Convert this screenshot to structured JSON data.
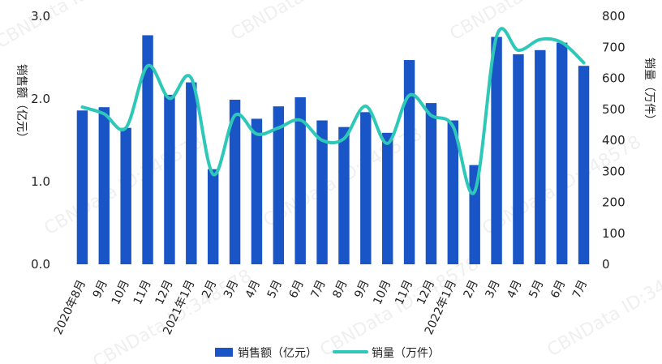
{
  "chart_data": {
    "type": "bar",
    "categories": [
      "2020年8月",
      "9月",
      "10月",
      "11月",
      "12月",
      "2021年1月",
      "2月",
      "3月",
      "4月",
      "5月",
      "6月",
      "7月",
      "8月",
      "9月",
      "10月",
      "11月",
      "12月",
      "2022年1月",
      "2月",
      "3月",
      "4月",
      "5月",
      "6月",
      "7月"
    ],
    "series": [
      {
        "name": "销售额（亿元）",
        "type": "bar",
        "axis": "left",
        "values": [
          1.86,
          1.9,
          1.65,
          2.77,
          2.05,
          2.2,
          1.15,
          1.99,
          1.76,
          1.91,
          2.02,
          1.74,
          1.66,
          1.84,
          1.59,
          2.47,
          1.95,
          1.74,
          1.2,
          2.75,
          2.54,
          2.59,
          2.68,
          2.4
        ]
      },
      {
        "name": "销量（万件）",
        "type": "line",
        "axis": "right",
        "values": [
          507,
          485,
          440,
          640,
          535,
          600,
          290,
          480,
          420,
          440,
          465,
          400,
          405,
          510,
          390,
          545,
          480,
          445,
          235,
          735,
          690,
          725,
          715,
          650
        ]
      }
    ],
    "y_left": {
      "label": "销售额（亿元）",
      "range": [
        0,
        3.0
      ],
      "ticks": [
        "0.0",
        "1.0",
        "2.0",
        "3.0"
      ]
    },
    "y_right": {
      "label": "销量（万件）",
      "range": [
        0,
        800
      ],
      "ticks": [
        "0",
        "100",
        "200",
        "300",
        "400",
        "500",
        "600",
        "700",
        "800"
      ]
    },
    "legend": {
      "position": "bottom"
    },
    "colors": {
      "bar": "#1a55c8",
      "line": "#2ec8b8"
    },
    "watermark": "CBNData ID:348578"
  }
}
